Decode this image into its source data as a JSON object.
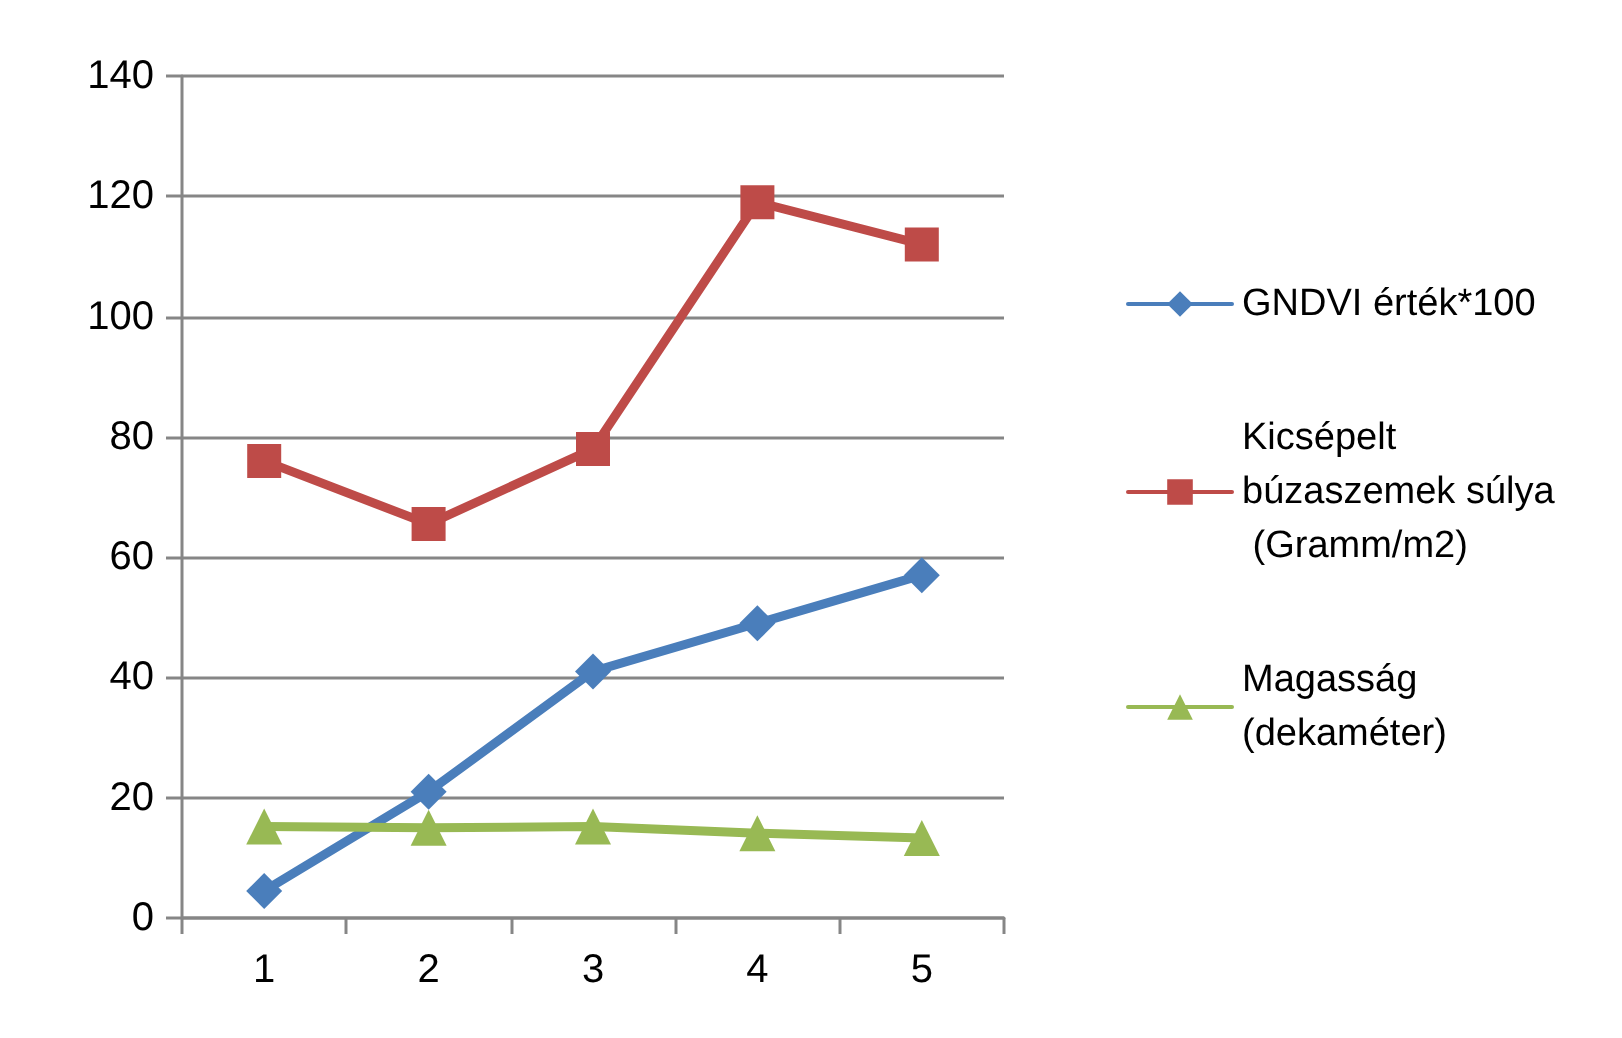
{
  "chart_data": {
    "type": "line",
    "categories": [
      "1",
      "2",
      "3",
      "4",
      "5"
    ],
    "series": [
      {
        "name": "GNDVI érték*100",
        "color": "#4a7ebb",
        "marker": "diamond",
        "values": [
          4.5,
          21,
          41,
          49,
          57
        ]
      },
      {
        "name": "Kicsépelt búzaszemek súlya (Gramm/m2)",
        "color": "#be4b48",
        "marker": "square",
        "values": [
          76,
          65.5,
          78,
          119,
          112
        ]
      },
      {
        "name": "Magasság (dekaméter)",
        "color": "#98b954",
        "marker": "triangle",
        "values": [
          15.2,
          15,
          15.2,
          14.1,
          13.3
        ]
      }
    ],
    "ylim": [
      0,
      140
    ],
    "yticks": [
      0,
      20,
      40,
      60,
      80,
      100,
      120,
      140
    ],
    "grid": "y",
    "legend": "right",
    "line_style": "solid"
  }
}
